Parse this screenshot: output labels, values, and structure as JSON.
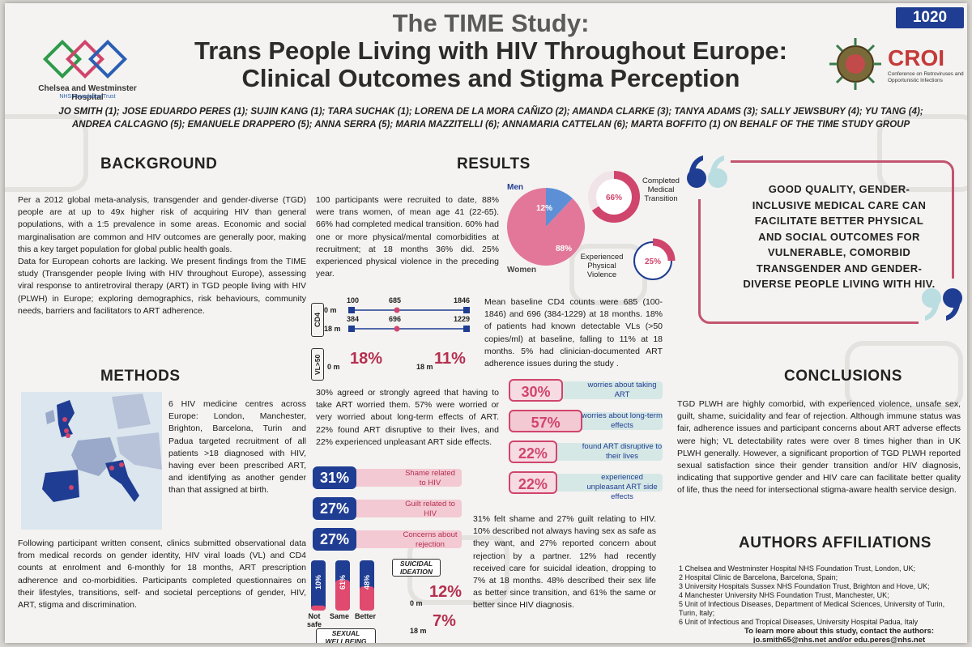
{
  "header": {
    "logo_left_name": "Chelsea and Westminster Hospital",
    "logo_left_sub": "NHS Foundation Trust",
    "title_line1": "The TIME Study:",
    "title_line2": "Trans People Living with HIV Throughout Europe:",
    "title_line3": "Clinical Outcomes and Stigma Perception",
    "poster_number": "1020",
    "croi_name": "CROI",
    "croi_sub": "Conference on Retroviruses and Opportunistic Infections",
    "authors_line1": "JO SMITH (1); JOSE EDUARDO PERES (1); SUJIN KANG (1); TARA SUCHAK (1); LORENA DE LA MORA CAÑIZO (2); AMANDA CLARKE (3); TANYA ADAMS (3); SALLY JEWSBURY (4); YU TANG (4);",
    "authors_line2": "ANDREA CALCAGNO (5); EMANUELE DRAPPERO (5); ANNA SERRA (5); MARIA MAZZITELLI (6); ANNAMARIA CATTELAN (6); MARTA BOFFITO (1) ON BEHALF OF THE TIME STUDY GROUP"
  },
  "background": {
    "heading": "BACKGROUND",
    "p1": "Per a 2012 global meta-analysis, transgender and gender-diverse (TGD) people are at up to 49x higher risk of acquiring HIV than general populations, with a 1:5 prevalence in some areas. Economic and social marginalisation are common and HIV outcomes are generally poor, making this a key target population for global public health goals.",
    "p2": "Data for European cohorts are lacking. We present findings from the TIME study (Transgender people living with HIV throughout Europe), assessing viral response to antiretroviral therapy (ART) in TGD people living with HIV (PLWH) in Europe; exploring demographics, risk behaviours, community needs, barriers and facilitators to ART adherence."
  },
  "methods": {
    "heading": "METHODS",
    "p1": "6 HIV medicine centres across Europe: London, Manchester, Brighton, Barcelona, Turin and Padua targeted recruitment of all patients >18 diagnosed with HIV, having ever been prescribed ART, and identifying as another gender than that assigned at birth.",
    "p2": "Following participant written consent, clinics submitted observational data from medical records on gender identity, HIV viral loads (VL) and CD4 counts at enrolment and 6-monthly for 18 months, ART prescription adherence and co-morbidities. Participants completed questionnaires on their lifestyles, transitions, self- and societal perceptions of gender, HIV, ART, stigma and discrimination."
  },
  "results": {
    "heading": "RESULTS",
    "p1": "100 participants were recruited to date, 88% were trans women, of mean age 41 (22-65). 66% had completed medical transition. 60% had one or more physical/mental comorbidities at recruitment; at 18 months 36% did. 25% experienced physical violence in the preceding year.",
    "pie": {
      "men_label": "Men",
      "women_label": "Women",
      "men_pct": "12%",
      "women_pct": "88%",
      "men_value": 12,
      "women_value": 88
    },
    "ring1": {
      "label": "Completed Medical Transition",
      "pct": "66%",
      "value": 66
    },
    "ring2": {
      "label": "Experienced Physical Violence",
      "pct": "25%",
      "value": 25
    },
    "cd4": {
      "axis_label": "CD4",
      "row0_label": "0 m",
      "row0_min": "100",
      "row0_mid": "685",
      "row0_max": "1846",
      "row18_label": "18 m",
      "row18_min": "384",
      "row18_mid": "696",
      "row18_max": "1229"
    },
    "vl": {
      "axis_label": "VL>50",
      "m0_label": "0 m",
      "m0_pct": "18%",
      "m18_label": "18 m",
      "m18_pct": "11%"
    },
    "p2": "Mean baseline CD4 counts were 685 (100-1846) and 696 (384-1229) at 18 months. 18% of patients had known detectable VLs (>50 copies/ml) at baseline, falling to 11% at 18 months. 5% had clinician-documented ART adherence issues during the study .",
    "p3": "30% agreed or strongly agreed that having to take ART worried them. 57% were worried or very worried about long-term effects of ART. 22% found ART disruptive to their lives, and 22% experienced unpleasant ART side effects.",
    "art_bars": [
      {
        "pct": "30%",
        "value": 30,
        "label": "worries about taking ART"
      },
      {
        "pct": "57%",
        "value": 57,
        "label": "worries about long-term effects"
      },
      {
        "pct": "22%",
        "value": 22,
        "label": "found ART disruptive to their lives"
      },
      {
        "pct": "22%",
        "value": 22,
        "label": "experienced unpleasant ART side effects"
      }
    ],
    "stigma_bars": [
      {
        "pct": "31%",
        "value": 31,
        "label": "Shame related to HIV"
      },
      {
        "pct": "27%",
        "value": 27,
        "label": "Guilt related to HIV"
      },
      {
        "pct": "27%",
        "value": 27,
        "label": "Concerns about rejection"
      }
    ],
    "sexual": {
      "title": "SEXUAL WELLBEING",
      "bars": [
        {
          "label": "Not safe",
          "pct": "10%",
          "value": 10
        },
        {
          "label": "Same",
          "pct": "61%",
          "value": 61
        },
        {
          "label": "Better",
          "pct": "48%",
          "value": 48
        }
      ]
    },
    "suicidal": {
      "title": "SUICIDAL IDEATION",
      "m0_label": "0 m",
      "m0_pct": "12%",
      "m18_label": "18 m",
      "m18_pct": "7%"
    },
    "p4": "31% felt shame and 27% guilt relating to HIV. 10% described not always having sex as safe as they want, and 27% reported concern about rejection by a partner. 12% had recently received care for suicidal ideation, dropping to 7% at 18 months. 48% described their sex life as better since transition, and 61% the same or better since HIV diagnosis."
  },
  "quote": {
    "text": "GOOD QUALITY, GENDER-INCLUSIVE MEDICAL CARE CAN FACILITATE BETTER PHYSICAL AND SOCIAL OUTCOMES FOR VULNERABLE, COMORBID TRANSGENDER AND GENDER-DIVERSE PEOPLE LIVING WITH HIV."
  },
  "conclusions": {
    "heading": "CONCLUSIONS",
    "p1": "TGD PLWH are highly comorbid, with experienced violence, unsafe sex, guilt, shame, suicidality and fear of rejection. Although immune status was fair, adherence issues and participant concerns about ART adverse effects were high; VL detectability rates were over 8 times higher than in UK PLWH generally. However, a significant proportion of TGD PLWH reported sexual satisfaction since their gender transition and/or HIV diagnosis, indicating that supportive gender and HIV care can facilitate better quality of life, thus the need for intersectional stigma-aware health service design."
  },
  "affiliations": {
    "heading": "AUTHORS AFFILIATIONS",
    "items": [
      "1 Chelsea and Westminster Hospital NHS Foundation Trust, London, UK;",
      "2 Hospital Clinic de Barcelona, Barcelona, Spain;",
      "3 University Hospitals Sussex NHS Foundation Trust, Brighton and Hove, UK;",
      "4 Manchester University NHS Foundation Trust, Manchester, UK;",
      "5 Unit of Infectious Diseases, Department of Medical Sciences, University of Turin, Turin, Italy;",
      "6 Unit of Infectious and Tropical Diseases, University Hospital Padua, Italy"
    ],
    "contact_line1": "To learn more about this study, contact the authors:",
    "contact_line2": "jo.smith65@nhs.net and/or edu.peres@nhs.net"
  },
  "colors": {
    "pink": "#d0456c",
    "light_pink": "#f3c9d3",
    "navy": "#1f3d92",
    "light_teal": "#d6e8e6"
  }
}
